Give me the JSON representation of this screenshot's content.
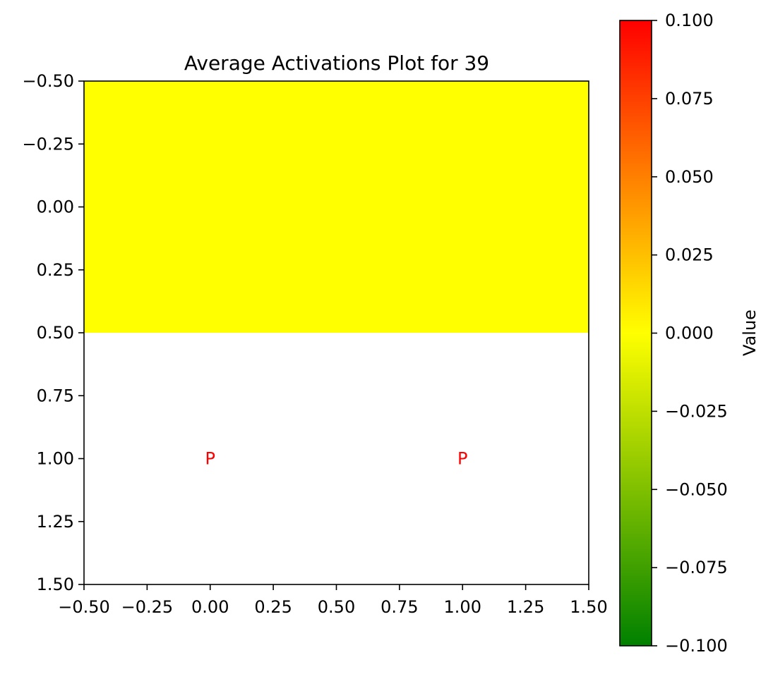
{
  "chart_data": {
    "type": "heatmap",
    "title": "Average Activations Plot for 39",
    "xlabel": "",
    "ylabel": "",
    "xlim": [
      -0.5,
      1.5
    ],
    "ylim": [
      1.5,
      -0.5
    ],
    "x_ticks": [
      "−0.50",
      "−0.25",
      "0.00",
      "0.25",
      "0.50",
      "0.75",
      "1.00",
      "1.25",
      "1.50"
    ],
    "y_ticks": [
      "−0.50",
      "−0.25",
      "0.00",
      "0.25",
      "0.50",
      "0.75",
      "1.00",
      "1.25",
      "1.50"
    ],
    "x_tick_values": [
      -0.5,
      -0.25,
      0,
      0.25,
      0.5,
      0.75,
      1.0,
      1.25,
      1.5
    ],
    "y_tick_values": [
      -0.5,
      -0.25,
      0,
      0.25,
      0.5,
      0.75,
      1.0,
      1.25,
      1.5
    ],
    "cells": [
      {
        "row": 0,
        "col": 0,
        "value": 0.0,
        "color": "#ffff00"
      },
      {
        "row": 0,
        "col": 1,
        "value": 0.0,
        "color": "#ffff00"
      },
      {
        "row": 1,
        "col": 0,
        "value": null,
        "color": "#ffffff"
      },
      {
        "row": 1,
        "col": 1,
        "value": null,
        "color": "#ffffff"
      }
    ],
    "annotations": [
      {
        "text": "P",
        "x": 0,
        "y": 1,
        "color": "#ff0000"
      },
      {
        "text": "P",
        "x": 1,
        "y": 1,
        "color": "#ff0000"
      }
    ],
    "colorbar": {
      "label": "Value",
      "range": [
        -0.1,
        0.1
      ],
      "colors": [
        "#008000",
        "#ffff00",
        "#ff0000"
      ],
      "ticks": [
        "−0.100",
        "−0.075",
        "−0.050",
        "−0.025",
        "0.000",
        "0.025",
        "0.050",
        "0.075",
        "0.100"
      ],
      "tick_values": [
        -0.1,
        -0.075,
        -0.05,
        -0.025,
        0,
        0.025,
        0.05,
        0.075,
        0.1
      ]
    },
    "grid": false,
    "legend": "none"
  }
}
